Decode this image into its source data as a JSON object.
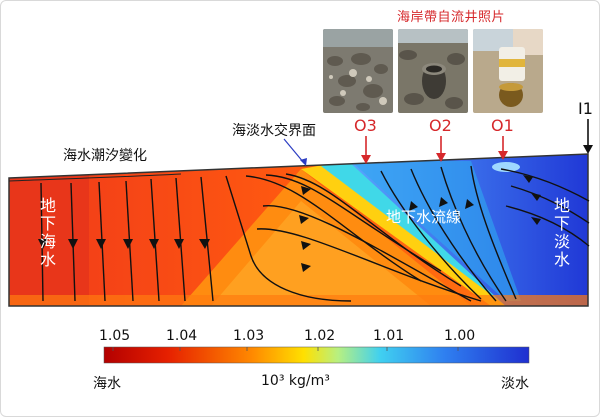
{
  "photos": {
    "caption": "海岸帶自流井照片",
    "items": [
      {
        "name": "photo-sand-pebbles"
      },
      {
        "name": "photo-well-pipe"
      },
      {
        "name": "photo-water-jar"
      }
    ]
  },
  "annotations": {
    "tidal_change": "海水潮汐變化",
    "interface": "海淡水交界面",
    "groundwater_flowlines": "地下水流線",
    "groundwater_seawater": "地下海水",
    "groundwater_freshwater": "地下淡水"
  },
  "wells": {
    "O3": "O3",
    "O2": "O2",
    "O1": "O1",
    "I1": "I1"
  },
  "colorbar": {
    "ticks": [
      "1.05",
      "1.04",
      "1.03",
      "1.02",
      "1.01",
      "1.00"
    ],
    "left_label": "海水",
    "right_label": "淡水",
    "unit": "10³ kg/m³"
  },
  "colors": {
    "accent_red": "#d6282b",
    "density_high": "#b30000",
    "density_low": "#1f2fd0"
  }
}
